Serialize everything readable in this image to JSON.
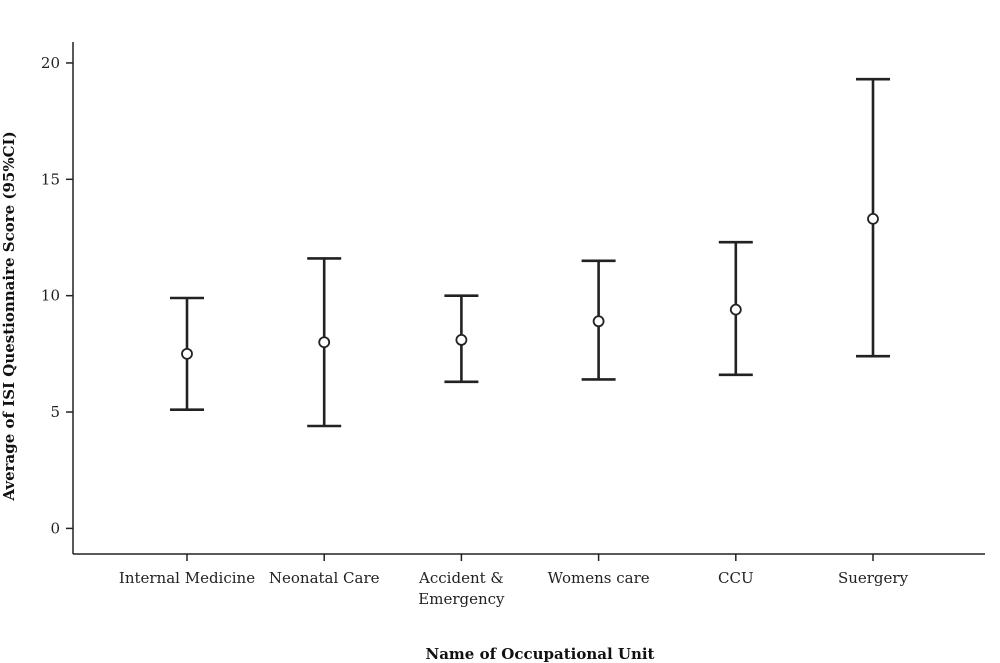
{
  "chart_data": {
    "type": "errorbar",
    "xlabel": "Name of Occupational Unit",
    "ylabel": "Average of ISI Questionnaire Score (95%CI)",
    "ylim": [
      -1.1,
      20.9
    ],
    "yticks": [
      0,
      5,
      10,
      15,
      20
    ],
    "grid": false,
    "categories": [
      [
        "Internal Medicine"
      ],
      [
        "Neonatal Care"
      ],
      [
        "Accident &",
        "Emergency"
      ],
      [
        "Womens care"
      ],
      [
        "CCU"
      ],
      [
        "Suergery"
      ]
    ],
    "series": [
      {
        "mean": [
          7.5,
          8.0,
          8.1,
          8.9,
          9.4,
          13.3
        ],
        "lower": [
          5.1,
          4.4,
          6.3,
          6.4,
          6.6,
          7.4
        ],
        "upper": [
          9.9,
          11.6,
          10.0,
          11.5,
          12.3,
          19.3
        ]
      }
    ]
  }
}
